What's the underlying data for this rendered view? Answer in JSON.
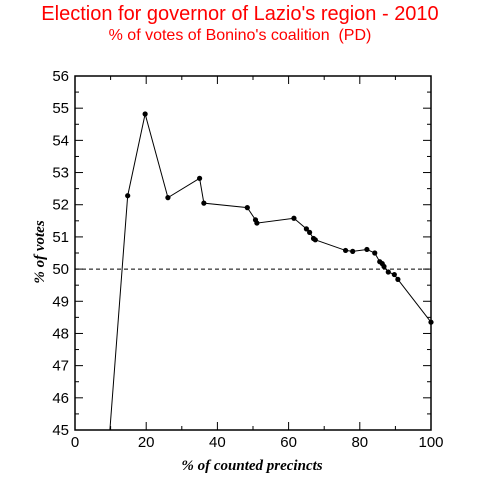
{
  "chart_data": {
    "type": "line",
    "title": "Election for governor of Lazio's region - 2010",
    "subtitle": "% of votes of Bonino's coalition  (PD)",
    "xlabel": "% of counted precincts",
    "ylabel": "% of votes",
    "xlim": [
      0,
      100
    ],
    "ylim": [
      45,
      56
    ],
    "xticks": [
      0,
      20,
      40,
      60,
      80,
      100
    ],
    "yticks": [
      45,
      46,
      47,
      48,
      49,
      50,
      51,
      52,
      53,
      54,
      55,
      56
    ],
    "reference_line": {
      "y": 50,
      "style": "dashed"
    },
    "grid": false,
    "legend": "none",
    "line_color": "#000000",
    "series": [
      {
        "x": [
          9.8,
          14.8,
          19.7,
          26.1,
          35.0,
          36.2,
          48.4,
          50.7,
          51.1,
          61.5,
          65.0,
          65.9,
          67.0,
          67.5,
          76.0,
          78.0,
          82.0,
          84.2,
          85.6,
          86.3,
          86.8,
          88.0,
          89.7,
          90.7,
          100.0
        ],
        "y": [
          45.0,
          52.28,
          54.82,
          52.22,
          52.82,
          52.05,
          51.91,
          51.53,
          51.43,
          51.58,
          51.25,
          51.14,
          50.95,
          50.91,
          50.58,
          50.55,
          50.61,
          50.5,
          50.23,
          50.17,
          50.08,
          49.91,
          49.83,
          49.68,
          48.35
        ]
      }
    ]
  }
}
